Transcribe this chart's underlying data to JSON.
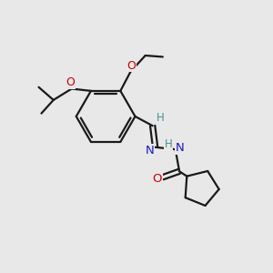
{
  "bg_color": "#e8e8e8",
  "bond_color": "#1a1a1a",
  "O_color": "#cc0000",
  "N_color": "#1a1acc",
  "H_color": "#4a9090",
  "line_width": 1.6,
  "figsize": [
    3.0,
    3.0
  ],
  "dpi": 100,
  "xlim": [
    0,
    10
  ],
  "ylim": [
    0,
    10
  ]
}
